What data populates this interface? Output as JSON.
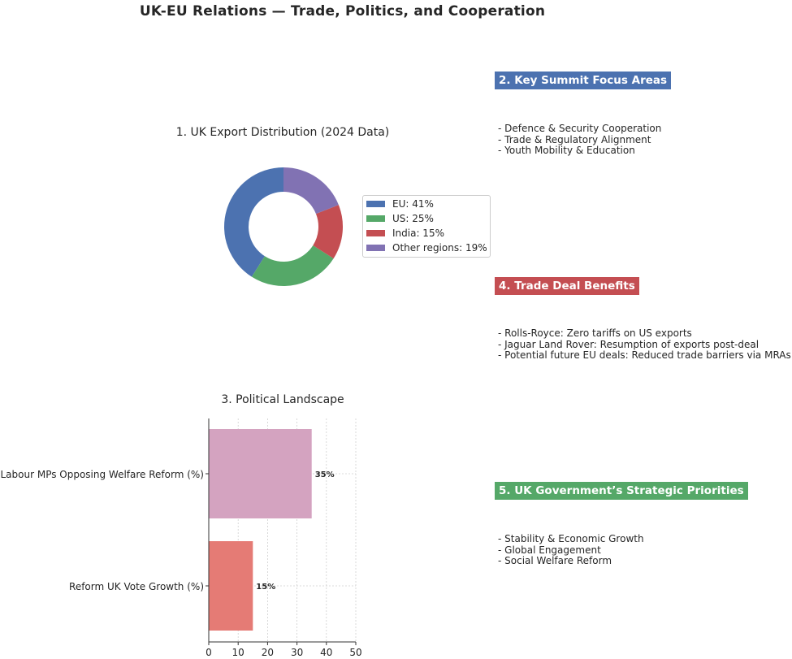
{
  "title": "UK-EU Relations — Trade, Politics, and Cooperation",
  "colors": {
    "eu": "#4c72b0",
    "us": "#55a868",
    "india": "#c44e52",
    "other": "#8172b3",
    "bar_labour": "#d4a3c0",
    "bar_reform": "#e57b75",
    "header_summit": "#4c72b0",
    "header_trade": "#c44e52",
    "header_priorities": "#55a868"
  },
  "chart_data": [
    {
      "type": "pie",
      "title": "1. UK Export Distribution (2024 Data)",
      "categories": [
        "EU",
        "US",
        "India",
        "Other regions"
      ],
      "values": [
        41,
        25,
        15,
        19
      ],
      "legend": [
        "EU: 41%",
        "US: 25%",
        "India: 15%",
        "Other regions: 19%"
      ],
      "legend_position": "right",
      "donut": true
    },
    {
      "type": "bar",
      "orientation": "horizontal",
      "title": "3. Political Landscape",
      "categories": [
        "Labour MPs Opposing Welfare Reform (%)",
        "Reform UK Vote Growth (%)"
      ],
      "values": [
        35,
        15
      ],
      "data_labels": [
        "35%",
        "15%"
      ],
      "xlim": [
        0,
        50
      ],
      "xticks": [
        "0",
        "10",
        "20",
        "30",
        "40",
        "50"
      ],
      "grid": true
    }
  ],
  "sections": {
    "summit": {
      "header": "2. Key Summit Focus Areas",
      "items": [
        "- Defence & Security Cooperation",
        "- Trade & Regulatory Alignment",
        "- Youth Mobility & Education"
      ]
    },
    "trade": {
      "header": "4. Trade Deal Benefits",
      "items": [
        "- Rolls-Royce: Zero tariffs on US exports",
        "- Jaguar Land Rover: Resumption of exports post-deal",
        "- Potential future EU deals: Reduced trade barriers via MRAs"
      ]
    },
    "priorities": {
      "header": "5. UK Government’s Strategic Priorities",
      "items": [
        "- Stability & Economic Growth",
        "- Global Engagement",
        "- Social Welfare Reform"
      ]
    }
  }
}
